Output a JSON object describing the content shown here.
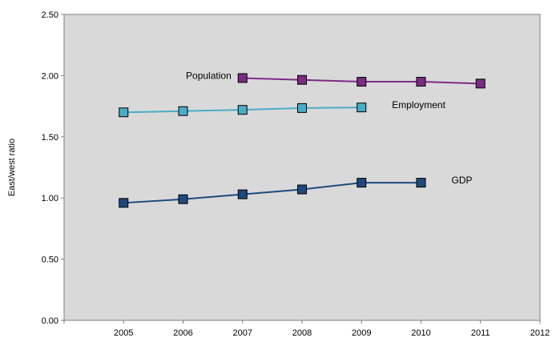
{
  "chart_data": {
    "type": "line",
    "title": "",
    "xlabel": "",
    "ylabel": "East/west ratio",
    "xlim": [
      2004,
      2012
    ],
    "ylim": [
      0,
      2.5
    ],
    "x_ticks": [
      "2005",
      "2006",
      "2007",
      "2008",
      "2009",
      "2010",
      "2011",
      "2012"
    ],
    "y_ticks": [
      "0.00",
      "0.50",
      "1.00",
      "1.50",
      "2.00",
      "2.50"
    ],
    "grid": false,
    "plot_background": "#d9d9d9",
    "series": [
      {
        "name": "Population",
        "color": "#7b2c83",
        "label_position": "left-of-first-point",
        "x": [
          2007,
          2008,
          2009,
          2010,
          2011
        ],
        "values": [
          1.98,
          1.965,
          1.95,
          1.95,
          1.935
        ]
      },
      {
        "name": "Employment",
        "color": "#4bacc6",
        "label_position": "right-of-last-point",
        "x": [
          2005,
          2006,
          2007,
          2008,
          2009
        ],
        "values": [
          1.7,
          1.71,
          1.72,
          1.735,
          1.74
        ]
      },
      {
        "name": "GDP",
        "color": "#1f497d",
        "label_position": "right-of-last-point",
        "x": [
          2005,
          2006,
          2007,
          2008,
          2009,
          2010
        ],
        "values": [
          0.96,
          0.99,
          1.03,
          1.07,
          1.125,
          1.125
        ]
      }
    ]
  }
}
